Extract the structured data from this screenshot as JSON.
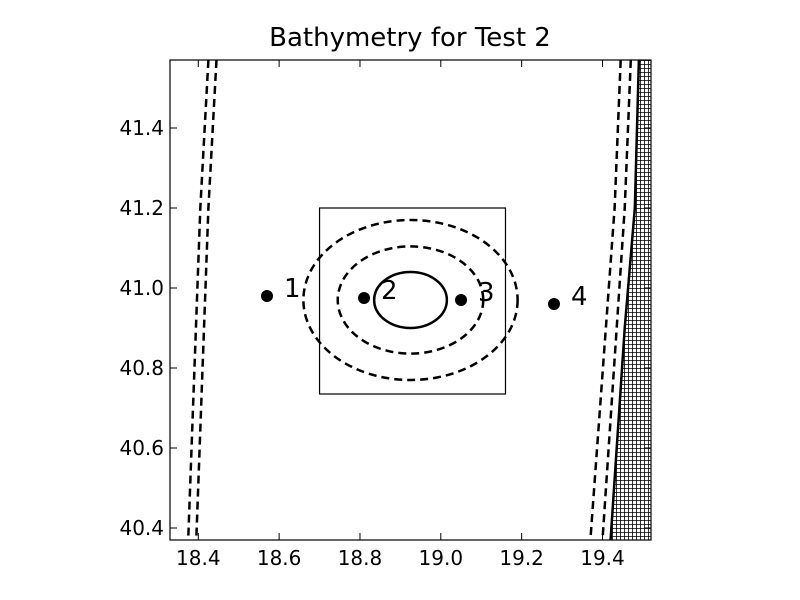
{
  "chart_data": {
    "type": "contour",
    "title": "Bathymetry for Test 2",
    "xlabel": "",
    "ylabel": "",
    "xlim": [
      18.33,
      19.52
    ],
    "ylim": [
      40.37,
      41.57
    ],
    "xticks": [
      "18.4",
      "18.6",
      "18.8",
      "19.0",
      "19.2",
      "19.4"
    ],
    "yticks": [
      "40.4",
      "40.6",
      "40.8",
      "41.0",
      "41.2",
      "41.4"
    ],
    "grid": false,
    "colors": {
      "line": "#000000",
      "background": "#ffffff"
    },
    "stations": [
      {
        "label": "1",
        "x": 18.57,
        "y": 40.98
      },
      {
        "label": "2",
        "x": 18.81,
        "y": 40.975
      },
      {
        "label": "3",
        "x": 19.05,
        "y": 40.97
      },
      {
        "label": "4",
        "x": 19.28,
        "y": 40.96
      }
    ],
    "refinement_box": {
      "x0": 18.7,
      "x1": 19.16,
      "y0": 40.735,
      "y1": 41.2
    },
    "seamount_contours": [
      {
        "cx": 18.925,
        "cy": 40.97,
        "rx": 0.265,
        "ry": 0.2,
        "style": "dashed"
      },
      {
        "cx": 18.925,
        "cy": 40.97,
        "rx": 0.18,
        "ry": 0.134,
        "style": "dashed"
      },
      {
        "cx": 18.925,
        "cy": 40.97,
        "rx": 0.09,
        "ry": 0.07,
        "style": "solid"
      }
    ],
    "left_contours": [
      {
        "style": "dashed",
        "points": [
          [
            18.425,
            41.57
          ],
          [
            18.405,
            41.2
          ],
          [
            18.375,
            40.37
          ]
        ]
      },
      {
        "style": "dashed",
        "points": [
          [
            18.445,
            41.57
          ],
          [
            18.425,
            41.2
          ],
          [
            18.395,
            40.37
          ]
        ]
      }
    ],
    "right_contours": [
      {
        "style": "dashed",
        "points": [
          [
            19.445,
            41.57
          ],
          [
            19.43,
            41.2
          ],
          [
            19.37,
            40.37
          ]
        ]
      },
      {
        "style": "dashed",
        "points": [
          [
            19.47,
            41.57
          ],
          [
            19.455,
            41.2
          ],
          [
            19.4,
            40.37
          ]
        ]
      },
      {
        "style": "solid",
        "points": [
          [
            19.49,
            41.57
          ],
          [
            19.48,
            41.2
          ],
          [
            19.455,
            40.9
          ],
          [
            19.42,
            40.37
          ]
        ]
      }
    ],
    "land_region": {
      "pattern": "crosshatch",
      "boundary": [
        [
          19.49,
          41.57
        ],
        [
          19.48,
          41.2
        ],
        [
          19.455,
          40.9
        ],
        [
          19.42,
          40.37
        ]
      ]
    }
  }
}
